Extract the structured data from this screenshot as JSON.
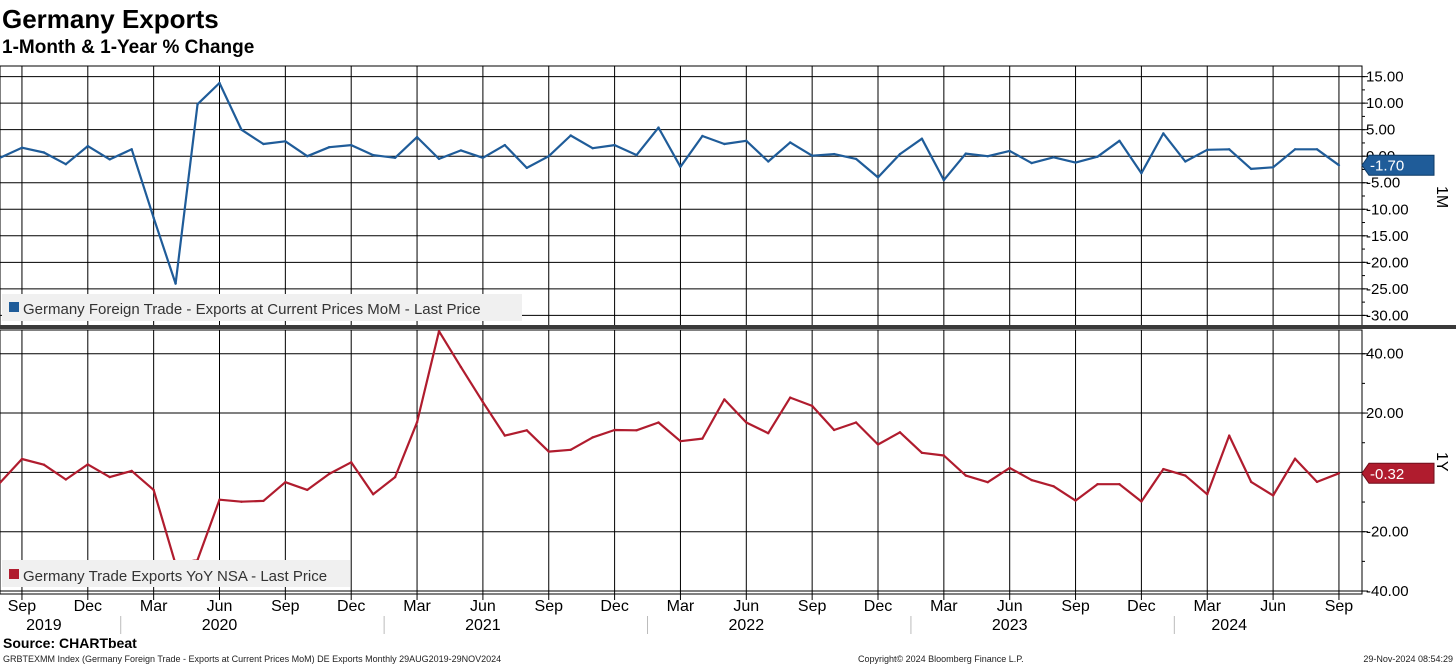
{
  "title": "Germany Exports",
  "subtitle": "1-Month & 1-Year % Change",
  "footer": {
    "source": "Source: CHARTbeat",
    "index_info": "GRBTEXMM Index (Germany Foreign Trade - Exports at Current Prices MoM) DE Exports  Monthly 29AUG2019-29NOV2024",
    "copyright": "Copyright© 2024 Bloomberg Finance L.P.",
    "timestamp": "29-Nov-2024 08:54:29"
  },
  "x_axis": {
    "month_ticks": [
      {
        "label": "Sep",
        "index": 0
      },
      {
        "label": "Dec",
        "index": 3
      },
      {
        "label": "Mar",
        "index": 6
      },
      {
        "label": "Jun",
        "index": 9
      },
      {
        "label": "Sep",
        "index": 12
      },
      {
        "label": "Dec",
        "index": 15
      },
      {
        "label": "Mar",
        "index": 18
      },
      {
        "label": "Jun",
        "index": 21
      },
      {
        "label": "Sep",
        "index": 24
      },
      {
        "label": "Dec",
        "index": 27
      },
      {
        "label": "Mar",
        "index": 30
      },
      {
        "label": "Jun",
        "index": 33
      },
      {
        "label": "Sep",
        "index": 36
      },
      {
        "label": "Dec",
        "index": 39
      },
      {
        "label": "Mar",
        "index": 42
      },
      {
        "label": "Jun",
        "index": 45
      },
      {
        "label": "Sep",
        "index": 48
      },
      {
        "label": "Dec",
        "index": 51
      },
      {
        "label": "Mar",
        "index": 54
      },
      {
        "label": "Jun",
        "index": 57
      },
      {
        "label": "Sep",
        "index": 60
      }
    ],
    "years": [
      {
        "label": "2019",
        "center_index": 1.0
      },
      {
        "label": "2020",
        "center_index": 9.0
      },
      {
        "label": "2021",
        "center_index": 21.0
      },
      {
        "label": "2022",
        "center_index": 33.0
      },
      {
        "label": "2023",
        "center_index": 45.0
      },
      {
        "label": "2024",
        "center_index": 55.0
      }
    ],
    "year_separators": [
      4.5,
      16.5,
      28.5,
      40.5,
      52.5
    ]
  },
  "chart_data": [
    {
      "type": "line",
      "name": "1M",
      "legend": "Germany Foreign Trade - Exports at Current Prices MoM - Last Price",
      "last_value_label": "-1.70",
      "color": "#1f5c99",
      "ylim": [
        -32,
        17
      ],
      "y_ticks": [
        "15.00",
        "10.00",
        "5.00",
        "0.00",
        "-5.00",
        "-10.00",
        "-15.00",
        "-20.00",
        "-25.00",
        "-30.00"
      ],
      "y_tick_values": [
        15,
        10,
        5,
        0,
        -5,
        -10,
        -15,
        -20,
        -25,
        -30
      ],
      "start": "Aug 2019",
      "values": [
        -0.3,
        1.6,
        0.7,
        -1.5,
        1.9,
        -0.6,
        1.3,
        -11.6,
        -24.0,
        9.8,
        13.8,
        5.0,
        2.3,
        2.8,
        0.0,
        1.7,
        2.1,
        0.2,
        -0.3,
        3.6,
        -0.5,
        1.1,
        -0.3,
        2.1,
        -2.2,
        0.0,
        3.9,
        1.5,
        2.1,
        0.2,
        5.4,
        -2.0,
        3.8,
        2.3,
        2.9,
        -1.0,
        2.6,
        0.1,
        0.4,
        -0.5,
        -4.0,
        0.4,
        3.3,
        -4.5,
        0.5,
        0.0,
        1.0,
        -1.3,
        -0.2,
        -1.2,
        -0.1,
        2.9,
        -3.2,
        4.3,
        -1.0,
        1.2,
        1.3,
        -2.4,
        -2.1,
        1.3,
        1.3,
        -1.7
      ]
    },
    {
      "type": "line",
      "name": "1Y",
      "legend": "Germany Trade Exports YoY NSA - Last Price",
      "last_value_label": "-0.32",
      "color": "#b01c2e",
      "ylim": [
        -41,
        48
      ],
      "y_ticks": [
        "40.00",
        "20.00",
        "0.00",
        "-20.00",
        "-40.00"
      ],
      "y_tick_values": [
        40,
        20,
        0,
        -20,
        -40
      ],
      "start": "Aug 2019",
      "values": [
        -3.5,
        4.5,
        2.6,
        -2.4,
        2.7,
        -1.6,
        0.5,
        -5.9,
        -31.0,
        -29.5,
        -9.2,
        -9.9,
        -9.6,
        -3.3,
        -5.9,
        -0.5,
        3.4,
        -7.4,
        -1.6,
        16.9,
        47.6,
        35.5,
        23.7,
        12.4,
        14.2,
        7.0,
        7.6,
        11.8,
        14.3,
        14.2,
        16.8,
        10.5,
        11.4,
        24.6,
        16.8,
        13.2,
        25.2,
        22.4,
        14.3,
        16.8,
        9.4,
        13.5,
        6.6,
        5.7,
        -1.1,
        -3.3,
        1.5,
        -2.6,
        -4.7,
        -9.5,
        -4.0,
        -4.0,
        -9.8,
        1.1,
        -1.1,
        -7.4,
        12.4,
        -3.2,
        -7.8,
        4.6,
        -3.2,
        -0.3
      ]
    }
  ]
}
